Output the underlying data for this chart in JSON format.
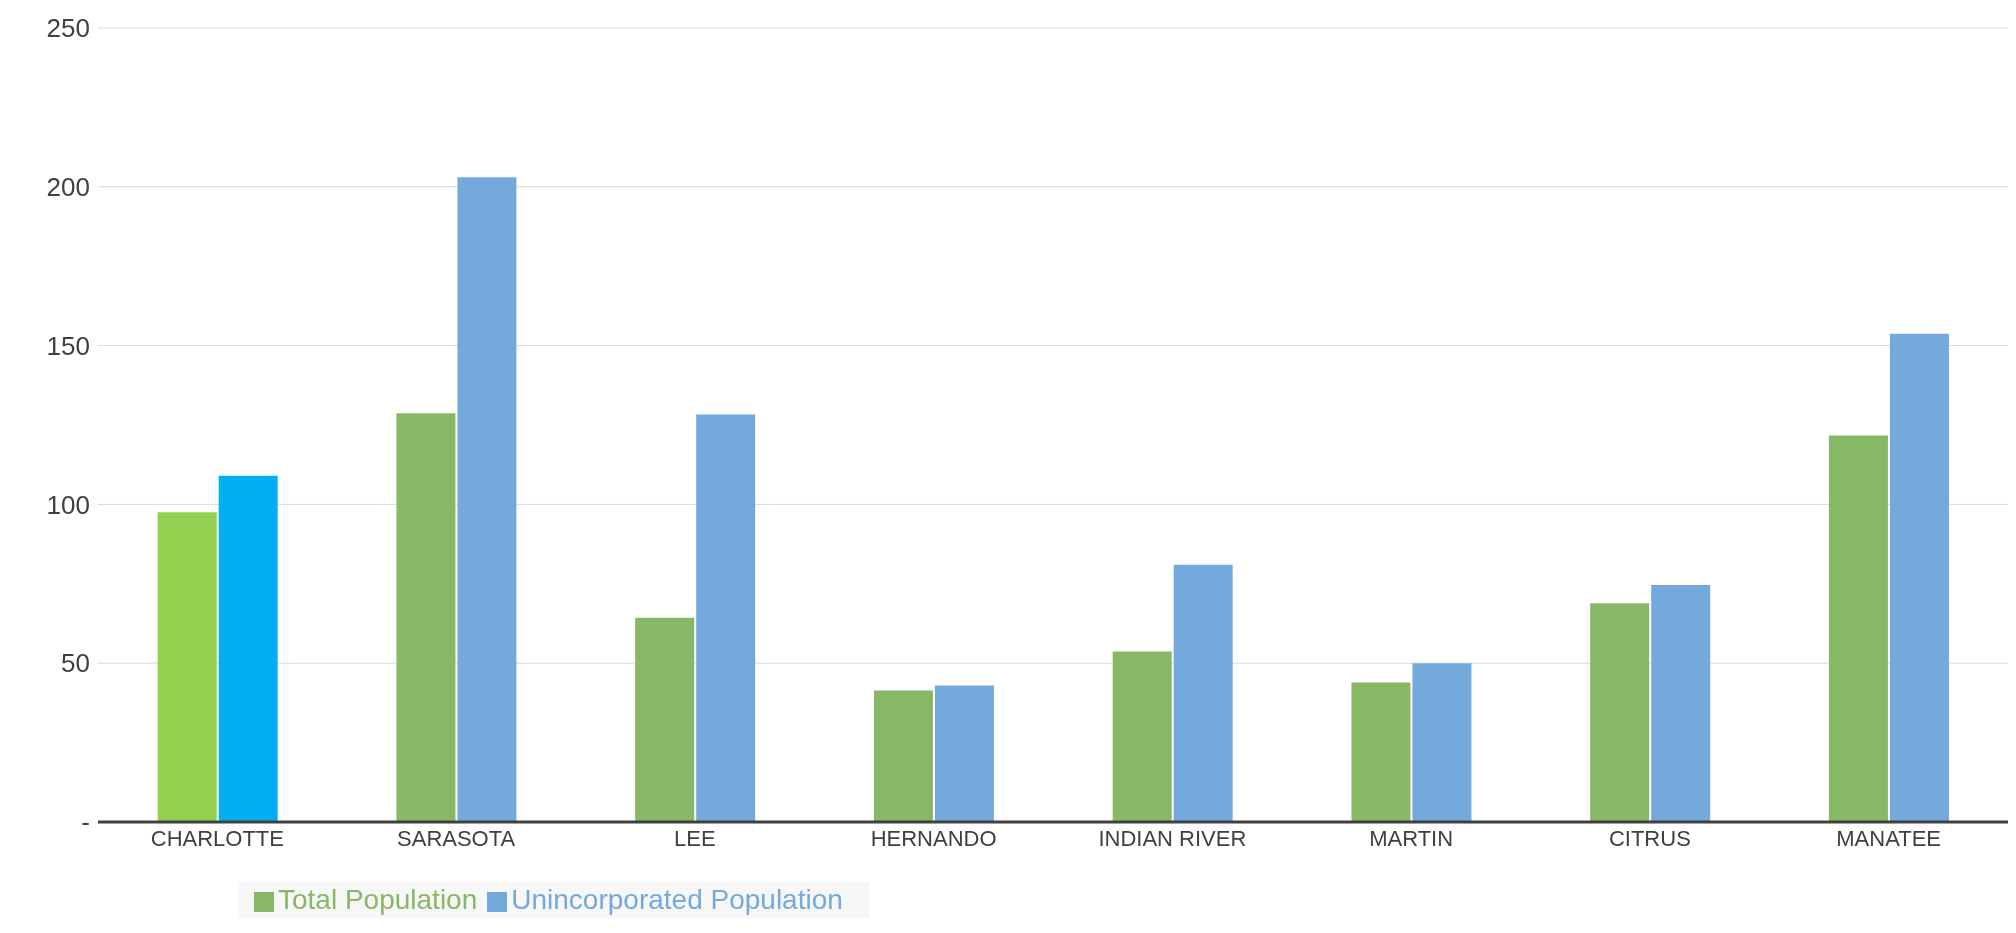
{
  "chart_data": {
    "type": "bar",
    "categories": [
      "CHARLOTTE",
      "SARASOTA",
      "LEE",
      "HERNANDO",
      "INDIAN RIVER",
      "MARTIN",
      "CITRUS",
      "MANATEE"
    ],
    "series": [
      {
        "name": "Total Population",
        "color": "#87b865",
        "colors": [
          "#92d050",
          "#87b865",
          "#87b865",
          "#87b865",
          "#87b865",
          "#87b865",
          "#87b865",
          "#87b865"
        ],
        "values": [
          97.5,
          128.7,
          64.3,
          41.4,
          53.7,
          43.9,
          68.9,
          121.7
        ]
      },
      {
        "name": "Unincorporated Population",
        "color": "#74a9db",
        "colors": [
          "#00b0f0",
          "#74a9db",
          "#74a9db",
          "#74a9db",
          "#74a9db",
          "#74a9db",
          "#74a9db",
          "#74a9db"
        ],
        "values": [
          109,
          203,
          128.3,
          43,
          81,
          50,
          74.6,
          153.7
        ]
      }
    ],
    "ylim": [
      0,
      250
    ],
    "yticks": [
      {
        "value": 0,
        "label": "-"
      },
      50,
      100,
      150,
      200,
      250
    ],
    "grid": "y",
    "legend": "bottom left"
  }
}
